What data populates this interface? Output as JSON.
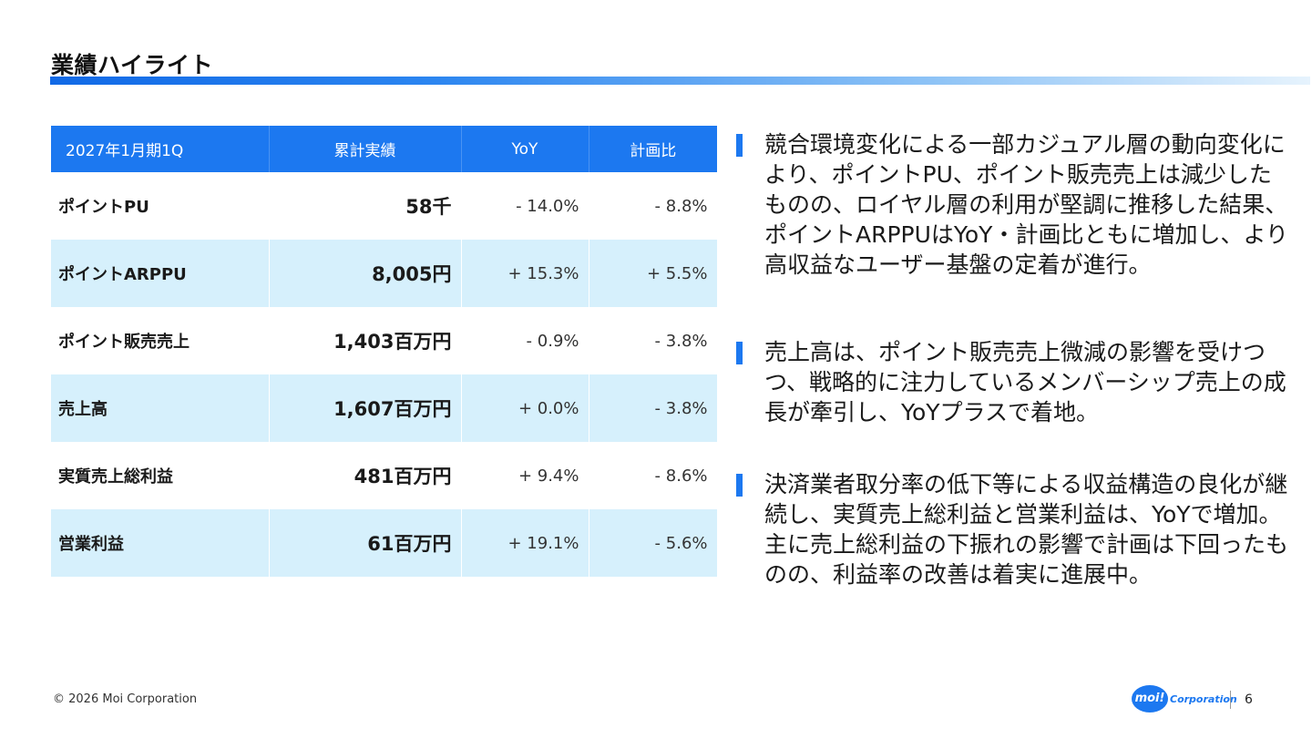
{
  "page": {
    "title": "業績ハイライト"
  },
  "table": {
    "headers": [
      "2027年1月期1Q",
      "累計実績",
      "YoY",
      "計画比"
    ],
    "rows": [
      {
        "label": "ポイントPU",
        "value": "58千",
        "yoy": "- 14.0%",
        "plan": "- 8.8%"
      },
      {
        "label": "ポイントARPPU",
        "value": "8,005円",
        "yoy": "+ 15.3%",
        "plan": "+ 5.5%"
      },
      {
        "label": "ポイント販売売上",
        "value": "1,403百万円",
        "yoy": "- 0.9%",
        "plan": "- 3.8%"
      },
      {
        "label": "売上高",
        "value": "1,607百万円",
        "yoy": "+ 0.0%",
        "plan": "- 3.8%"
      },
      {
        "label": "実質売上総利益",
        "value": "481百万円",
        "yoy": "+ 9.4%",
        "plan": "- 8.6%"
      },
      {
        "label": "営業利益",
        "value": "61百万円",
        "yoy": "+ 19.1%",
        "plan": "- 5.6%"
      }
    ]
  },
  "bullets": [
    {
      "text": "競合環境変化による一部カジュアル層の動向変化により、ポイントPU、ポイント販売売上は減少したものの、ロイヤル層の利用が堅調に推移した結果、ポイントARPPUはYoY・計画比ともに増加し、より高収益なユーザー基盤の定着が進行。"
    },
    {
      "text": "売上高は、ポイント販売売上微減の影響を受けつつ、戦略的に注力しているメンバーシップ売上の成長が牽引し、YoYプラスで着地。"
    },
    {
      "text": "決済業者取分率の低下等による収益構造の良化が継続し、実質売上総利益と営業利益は、YoYで増加。主に売上総利益の下振れの影響で計画は下回ったものの、利益率の改善は着実に進展中。"
    }
  ],
  "footer": {
    "copyright": "© 2026 Moi Corporation",
    "logo_badge": "moi!",
    "logo_text": "Corporation",
    "page_number": "6"
  },
  "colors": {
    "accent": "#1c78f0",
    "row_alt": "#d6f0fc"
  }
}
